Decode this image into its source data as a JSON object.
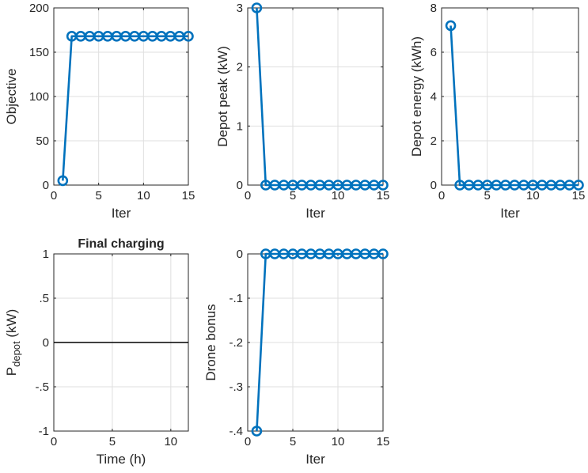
{
  "chart_data": [
    {
      "type": "line",
      "xlabel": "Iter",
      "ylabel": "Objective",
      "xlim": [
        0,
        15
      ],
      "ylim": [
        0,
        200
      ],
      "xticks": [
        0,
        5,
        10,
        15
      ],
      "yticks": [
        0,
        50,
        100,
        150,
        200
      ],
      "grid": true,
      "marker": "circle",
      "color": "#0072BD",
      "x": [
        1,
        2,
        3,
        4,
        5,
        6,
        7,
        8,
        9,
        10,
        11,
        12,
        13,
        14,
        15
      ],
      "y": [
        5,
        168,
        168,
        168,
        168,
        168,
        168,
        168,
        168,
        168,
        168,
        168,
        168,
        168,
        168
      ]
    },
    {
      "type": "line",
      "xlabel": "Iter",
      "ylabel": "Depot peak (kW)",
      "xlim": [
        0,
        15
      ],
      "ylim": [
        0,
        3
      ],
      "xticks": [
        0,
        5,
        10,
        15
      ],
      "yticks": [
        0,
        1,
        2,
        3
      ],
      "grid": true,
      "marker": "circle",
      "color": "#0072BD",
      "x": [
        1,
        2,
        3,
        4,
        5,
        6,
        7,
        8,
        9,
        10,
        11,
        12,
        13,
        14,
        15
      ],
      "y": [
        3,
        0,
        0,
        0,
        0,
        0,
        0,
        0,
        0,
        0,
        0,
        0,
        0,
        0,
        0
      ]
    },
    {
      "type": "line",
      "xlabel": "Iter",
      "ylabel": "Depot energy (kWh)",
      "xlim": [
        0,
        15
      ],
      "ylim": [
        0,
        8
      ],
      "xticks": [
        0,
        5,
        10,
        15
      ],
      "yticks": [
        0,
        2,
        4,
        6,
        8
      ],
      "grid": true,
      "marker": "circle",
      "color": "#0072BD",
      "x": [
        1,
        2,
        3,
        4,
        5,
        6,
        7,
        8,
        9,
        10,
        11,
        12,
        13,
        14,
        15
      ],
      "y": [
        7.2,
        0,
        0,
        0,
        0,
        0,
        0,
        0,
        0,
        0,
        0,
        0,
        0,
        0,
        0
      ]
    },
    {
      "type": "line",
      "title": "Final charging",
      "xlabel": "Time (h)",
      "ylabel_main": "P",
      "ylabel_sub": "depot",
      "ylabel_unit": " (kW)",
      "xlim": [
        0,
        11.5
      ],
      "ylim": [
        -1,
        1
      ],
      "xticks": [
        0,
        5,
        10
      ],
      "yticks": [
        -1,
        -0.5,
        0,
        0.5,
        1
      ],
      "grid": true,
      "marker": "none",
      "color": "#000000",
      "x": [
        0,
        11.5
      ],
      "y": [
        0,
        0
      ]
    },
    {
      "type": "line",
      "xlabel": "Iter",
      "ylabel": "Drone bonus",
      "xlim": [
        0,
        15
      ],
      "ylim": [
        -0.4,
        0
      ],
      "xticks": [
        0,
        5,
        10,
        15
      ],
      "yticks": [
        -0.4,
        -0.3,
        -0.2,
        -0.1,
        0
      ],
      "grid": true,
      "marker": "circle",
      "color": "#0072BD",
      "x": [
        1,
        2,
        3,
        4,
        5,
        6,
        7,
        8,
        9,
        10,
        11,
        12,
        13,
        14,
        15
      ],
      "y": [
        -0.4,
        0,
        0,
        0,
        0,
        0,
        0,
        0,
        0,
        0,
        0,
        0,
        0,
        0,
        0
      ]
    }
  ]
}
